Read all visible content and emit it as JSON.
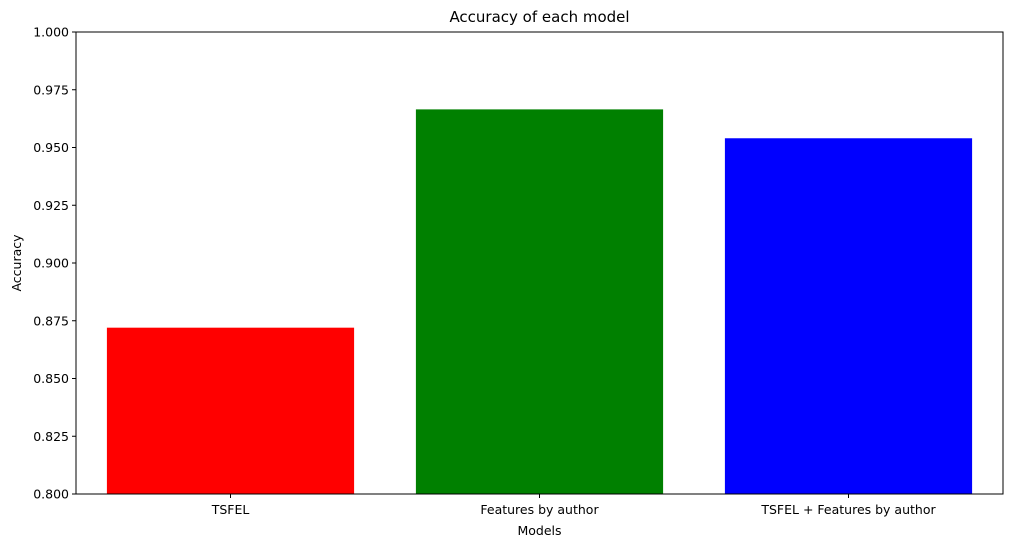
{
  "chart_data": {
    "type": "bar",
    "title": "Accuracy of each model",
    "xlabel": "Models",
    "ylabel": "Accuracy",
    "categories": [
      "TSFEL",
      "Features by author",
      "TSFEL + Features by author"
    ],
    "values": [
      0.872,
      0.9665,
      0.954
    ],
    "colors": [
      "#ff0000",
      "#008000",
      "#0000ff"
    ],
    "ylim": [
      0.8,
      1.0
    ],
    "yticks": [
      "0.800",
      "0.825",
      "0.850",
      "0.875",
      "0.900",
      "0.925",
      "0.950",
      "0.975",
      "1.000"
    ],
    "grid": false,
    "legend": "none"
  }
}
